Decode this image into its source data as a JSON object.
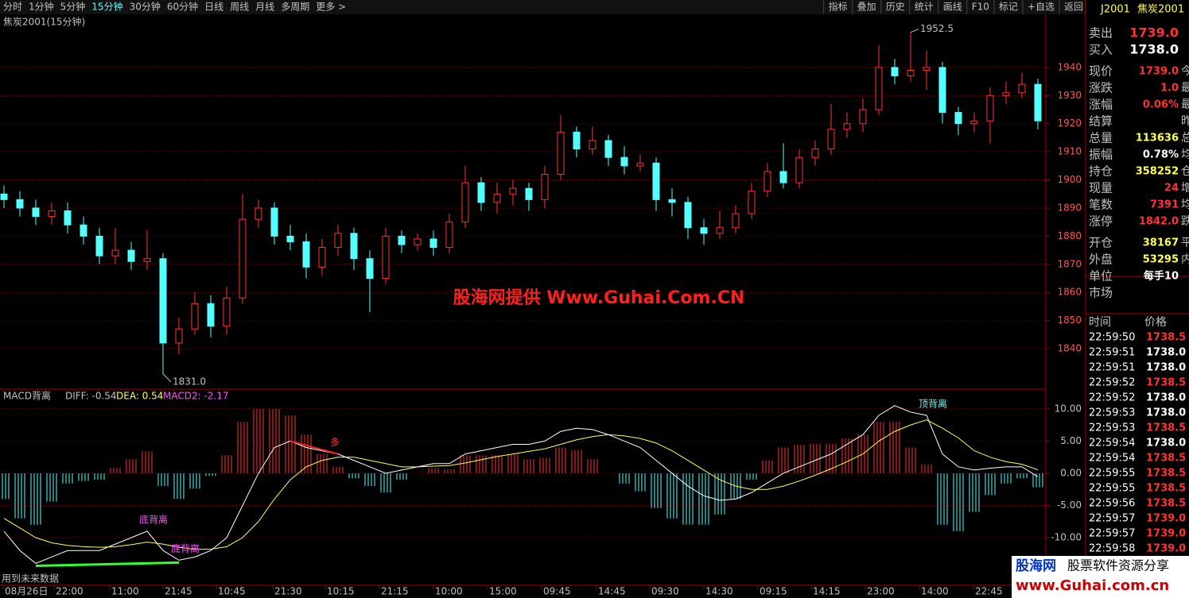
{
  "toolbar": {
    "periods": [
      "分时",
      "1分钟",
      "5分钟",
      "15分钟",
      "30分钟",
      "60分钟",
      "日线",
      "周线",
      "月线",
      "多周期",
      "更多 >"
    ],
    "active": 3,
    "buttons": [
      "指标",
      "叠加",
      "历史",
      "统计",
      "画线",
      "F10",
      "标记",
      "+自选",
      "返回"
    ]
  },
  "chart_data": [
    {
      "type": "candlestick",
      "title": "焦炭2001(15分钟)",
      "up_color": "#ff3232",
      "down_color": "#54ffff",
      "open": [
        1895,
        1893,
        1890,
        1887,
        1889,
        1884,
        1880,
        1873,
        1875,
        1871,
        1872,
        1842,
        1847,
        1856,
        1848,
        1858,
        1886,
        1890,
        1880,
        1878,
        1869,
        1876,
        1881,
        1872,
        1865,
        1880,
        1877,
        1879,
        1876,
        1885,
        1899,
        1892,
        1895,
        1897,
        1893,
        1902,
        1917,
        1911,
        1914,
        1908,
        1905,
        1906,
        1893,
        1892,
        1883,
        1881,
        1883,
        1888,
        1896,
        1903,
        1899,
        1908,
        1911,
        1918,
        1920,
        1925,
        1940,
        1937,
        1939,
        1940,
        1924,
        1920,
        1921,
        1930,
        1931,
        1934
      ],
      "high": [
        1898,
        1896,
        1893,
        1892,
        1892,
        1887,
        1883,
        1883,
        1878,
        1882,
        1874,
        1851,
        1860,
        1859,
        1862,
        1895,
        1893,
        1892,
        1884,
        1881,
        1879,
        1884,
        1883,
        1875,
        1883,
        1882,
        1881,
        1882,
        1888,
        1905,
        1901,
        1899,
        1900,
        1899,
        1905,
        1923,
        1919,
        1919,
        1916,
        1912,
        1909,
        1908,
        1897,
        1894,
        1886,
        1889,
        1891,
        1899,
        1906,
        1913,
        1911,
        1914,
        1927,
        1924,
        1929,
        1948,
        1943,
        1952.5,
        1946,
        1942,
        1926,
        1924,
        1933,
        1935,
        1938,
        1936
      ],
      "low": [
        1890,
        1887,
        1884,
        1884,
        1881,
        1877,
        1870,
        1870,
        1868,
        1868,
        1831,
        1838,
        1845,
        1844,
        1845,
        1856,
        1883,
        1877,
        1875,
        1865,
        1866,
        1873,
        1868,
        1853,
        1863,
        1874,
        1875,
        1873,
        1874,
        1883,
        1889,
        1888,
        1891,
        1889,
        1890,
        1900,
        1908,
        1909,
        1905,
        1902,
        1903,
        1889,
        1887,
        1879,
        1877,
        1879,
        1881,
        1886,
        1894,
        1897,
        1897,
        1905,
        1909,
        1915,
        1917,
        1923,
        1934,
        1935,
        1932,
        1920,
        1916,
        1917,
        1913,
        1927,
        1929,
        1918
      ],
      "close": [
        1893,
        1890,
        1887,
        1889,
        1884,
        1880,
        1873,
        1875,
        1871,
        1872,
        1842,
        1847,
        1856,
        1848,
        1858,
        1886,
        1890,
        1880,
        1878,
        1869,
        1876,
        1881,
        1872,
        1865,
        1880,
        1877,
        1879,
        1876,
        1885,
        1899,
        1892,
        1895,
        1897,
        1893,
        1902,
        1917,
        1911,
        1914,
        1908,
        1905,
        1906,
        1893,
        1892,
        1883,
        1881,
        1883,
        1888,
        1896,
        1903,
        1899,
        1908,
        1911,
        1918,
        1920,
        1925,
        1940,
        1937,
        1939,
        1940,
        1924,
        1920,
        1921,
        1930,
        1931,
        1934,
        1921
      ],
      "ylim": [
        1825.6,
        1958.9
      ],
      "yticks": [
        {
          "value": 1840,
          "label": "1840"
        },
        {
          "value": 1850,
          "label": "1850"
        },
        {
          "value": 1860,
          "label": "1860"
        },
        {
          "value": 1870,
          "label": "1870"
        },
        {
          "value": 1880,
          "label": "1880"
        },
        {
          "value": 1890,
          "label": "1890"
        },
        {
          "value": 1900,
          "label": "1900"
        },
        {
          "value": 1910,
          "label": "1910"
        },
        {
          "value": 1920,
          "label": "1920"
        },
        {
          "value": 1930,
          "label": "1930"
        },
        {
          "value": 1940,
          "label": "1940"
        }
      ],
      "max_label": {
        "value": 1952.5,
        "label": "1952.5",
        "index": 57
      },
      "min_label": {
        "value": 1831,
        "label": "1831.0",
        "index": 10
      },
      "watermark": "股海网提供 Www.Guhai.Com.CN"
    },
    {
      "type": "macd",
      "title": "MACD背离",
      "diff_label": "DIFF: -0.54",
      "dea_label": "DEA: 0.54",
      "macd_label": "MACD2: -2.17",
      "series": [
        {
          "name": "DIFF",
          "color": "#ffffff",
          "values": [
            -9,
            -12,
            -14,
            -13,
            -12,
            -12,
            -12,
            -11,
            -10,
            -9,
            -12,
            -13.5,
            -13,
            -12,
            -10,
            -5,
            0,
            4,
            5,
            4,
            3.5,
            3,
            2,
            1,
            0,
            0.5,
            1,
            1.5,
            1.5,
            3,
            3.5,
            4,
            4.5,
            4.5,
            5,
            6.5,
            7,
            6.8,
            6,
            5,
            4,
            2,
            0,
            -2,
            -3.5,
            -4.2,
            -4,
            -3,
            -1.5,
            0,
            1,
            2,
            3,
            4.5,
            6,
            9,
            10.5,
            9.5,
            9,
            3,
            1,
            0.5,
            0.8,
            1,
            1,
            -0.54
          ]
        },
        {
          "name": "DEA",
          "color": "#ffff54",
          "values": [
            -7,
            -8.5,
            -10,
            -10.8,
            -11.2,
            -11.4,
            -11.5,
            -11.4,
            -11.1,
            -10.7,
            -11,
            -11.5,
            -11.8,
            -11.8,
            -11.4,
            -10,
            -7.5,
            -4,
            -1,
            1,
            2,
            2.5,
            2.5,
            2,
            1.5,
            1,
            1,
            1.1,
            1.2,
            1.6,
            2.1,
            2.6,
            3,
            3.4,
            3.8,
            4.5,
            5.2,
            5.7,
            6,
            5.8,
            5.4,
            4.7,
            3.5,
            2,
            0.5,
            -1,
            -2,
            -2.5,
            -2.5,
            -2,
            -1.2,
            -0.3,
            0.7,
            1.8,
            3,
            5,
            6.5,
            7.5,
            8.3,
            7,
            5.5,
            3.5,
            2.5,
            1.8,
            1.4,
            0.54
          ]
        },
        {
          "name": "MACD2",
          "values": [
            -4,
            -7,
            -8,
            -4.4,
            -1.6,
            -1.2,
            -1,
            0.8,
            2.2,
            3.4,
            -2,
            -4,
            -2.4,
            -0.4,
            2.8,
            8,
            10,
            10,
            9,
            6,
            3,
            1,
            -0.8,
            -2,
            -3,
            -1,
            0,
            0.8,
            0.6,
            2.8,
            2.8,
            2.8,
            3,
            2.2,
            2.4,
            4,
            3.6,
            2.2,
            0,
            -1.6,
            -2.8,
            -5.4,
            -7,
            -8,
            -8,
            -6.4,
            -4,
            -1,
            2,
            4,
            4.4,
            4.6,
            4.6,
            5.4,
            6,
            8,
            8,
            4,
            1.4,
            -8,
            -9,
            -6,
            -3.4,
            -1.6,
            -0.8,
            -2.17
          ]
        }
      ],
      "ylim": [
        -17.4,
        12.7
      ],
      "yticks": [
        {
          "value": 10,
          "label": "10.00"
        },
        {
          "value": 5,
          "label": "5.00"
        },
        {
          "value": 0,
          "label": "0.00"
        },
        {
          "value": -5,
          "label": "-5.00"
        },
        {
          "value": -10,
          "label": "-10.00"
        }
      ],
      "annotations": [
        {
          "text": "底背离",
          "index": 9
        },
        {
          "text": "底背离",
          "index": 11
        },
        {
          "text": "顶背离",
          "index": 58
        },
        {
          "text": "多",
          "index": 21
        }
      ],
      "footnote": "用到未来数据"
    }
  ],
  "x_labels": [
    "08月26日",
    "22:00",
    "11:00",
    "21:45",
    "10:45",
    "21:30",
    "10:15",
    "21:15",
    "10:00",
    "15:00",
    "09:45",
    "14:45",
    "09:30",
    "14:30",
    "09:15",
    "14:15",
    "23:00",
    "14:00",
    "22:45"
  ],
  "quote": {
    "code": "J2001",
    "name": "焦炭2001",
    "rows": [
      [
        "卖出",
        "1739.0",
        ""
      ],
      [
        "买入",
        "1738.0",
        ""
      ],
      [
        "现价",
        "1739.0",
        "今"
      ],
      [
        "涨跌",
        "1.0",
        "最"
      ],
      [
        "涨幅",
        "0.06%",
        "最"
      ],
      [
        "结算",
        "",
        "昨"
      ],
      [
        "总量",
        "113636",
        "总"
      ],
      [
        "振幅",
        "0.78%",
        "均"
      ],
      [
        "持仓",
        "358252",
        "仓"
      ],
      [
        "现量",
        "24",
        "增"
      ],
      [
        "笔数",
        "7391",
        "均"
      ],
      [
        "涨停",
        "1842.0",
        "跌"
      ],
      [
        "开仓",
        "38167",
        "平"
      ],
      [
        "外盘",
        "53295",
        "内"
      ],
      [
        "单位",
        "每手10",
        ""
      ],
      [
        "市场",
        "",
        ""
      ]
    ]
  },
  "ticks": {
    "header": [
      "时间",
      "价格"
    ],
    "rows": [
      [
        "22:59:50",
        "1738.5"
      ],
      [
        "22:59:51",
        "1738.0"
      ],
      [
        "22:59:51",
        "1738.0"
      ],
      [
        "22:59:52",
        "1738.5"
      ],
      [
        "22:59:52",
        "1738.0"
      ],
      [
        "22:59:53",
        "1738.0"
      ],
      [
        "22:59:53",
        "1738.5"
      ],
      [
        "22:59:54",
        "1738.0"
      ],
      [
        "22:59:54",
        "1738.5"
      ],
      [
        "22:59:55",
        "1738.5"
      ],
      [
        "22:59:55",
        "1738.5"
      ],
      [
        "22:59:56",
        "1738.5"
      ],
      [
        "22:59:57",
        "1739.0"
      ],
      [
        "22:59:57",
        "1739.0"
      ],
      [
        "22:59:58",
        "1739.0"
      ]
    ]
  },
  "logo": {
    "brand": "股海网",
    "slogan": "股票软件资源分享",
    "url": "www.Guhai.com.cn"
  }
}
